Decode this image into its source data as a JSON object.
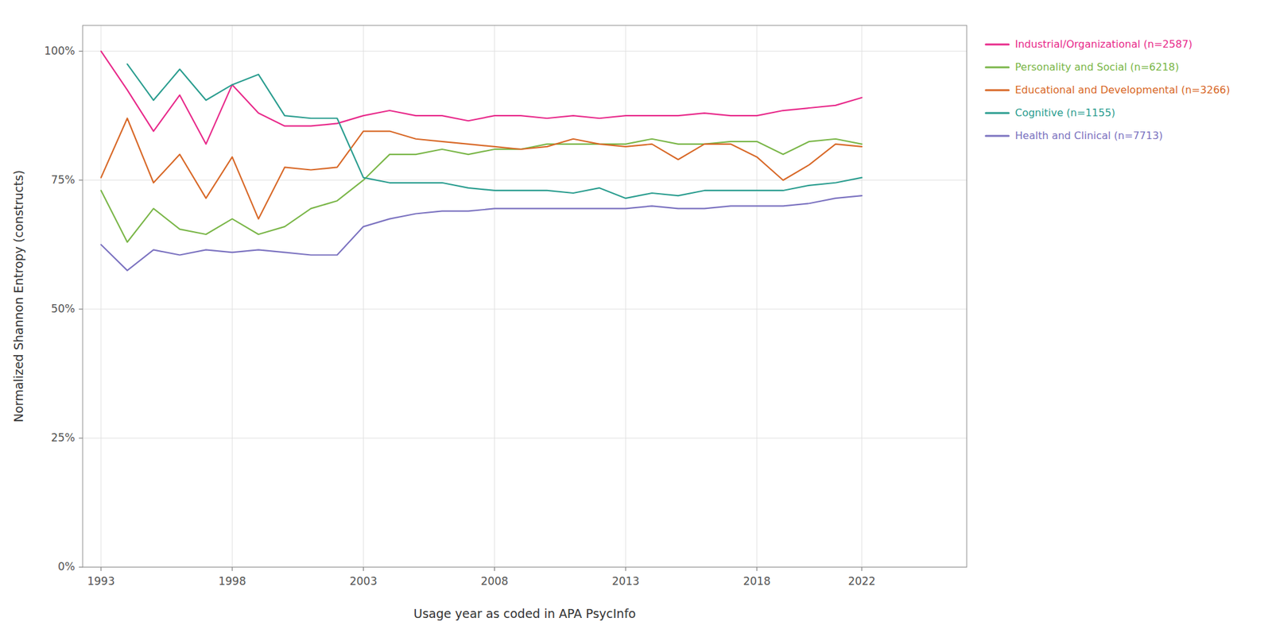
{
  "chart_data": {
    "type": "line",
    "x_label": "Usage year as coded in APA PsycInfo",
    "y_label": "Normalized Shannon Entropy (constructs)",
    "x": [
      1993,
      1994,
      1995,
      1996,
      1997,
      1998,
      1999,
      2000,
      2001,
      2002,
      2003,
      2004,
      2005,
      2006,
      2007,
      2008,
      2009,
      2010,
      2011,
      2012,
      2013,
      2014,
      2015,
      2016,
      2017,
      2018,
      2019,
      2020,
      2021,
      2022
    ],
    "series": [
      {
        "name": "Industrial/Organizational (n=2587)",
        "color": "#e8298a",
        "values": [
          1.0,
          0.925,
          0.845,
          0.915,
          0.82,
          0.935,
          0.88,
          0.855,
          0.855,
          0.86,
          0.875,
          0.885,
          0.875,
          0.875,
          0.865,
          0.875,
          0.875,
          0.87,
          0.875,
          0.87,
          0.875,
          0.875,
          0.875,
          0.88,
          0.875,
          0.875,
          0.885,
          0.89,
          0.895,
          0.91
        ]
      },
      {
        "name": "Personality and Social (n=6218)",
        "color": "#7ab648",
        "values": [
          0.73,
          0.63,
          0.695,
          0.655,
          0.645,
          0.675,
          0.645,
          0.66,
          0.695,
          0.71,
          0.75,
          0.8,
          0.8,
          0.81,
          0.8,
          0.81,
          0.81,
          0.82,
          0.82,
          0.82,
          0.82,
          0.83,
          0.82,
          0.82,
          0.825,
          0.825,
          0.8,
          0.825,
          0.83,
          0.82
        ]
      },
      {
        "name": "Educational and Developmental (n=3266)",
        "color": "#d86827",
        "values": [
          0.755,
          0.87,
          0.745,
          0.8,
          0.715,
          0.795,
          0.675,
          0.775,
          0.77,
          0.775,
          0.845,
          0.845,
          0.83,
          0.825,
          0.82,
          0.815,
          0.81,
          0.815,
          0.83,
          0.82,
          0.815,
          0.82,
          0.79,
          0.82,
          0.82,
          0.795,
          0.75,
          0.78,
          0.82,
          0.815
        ]
      },
      {
        "name": "Cognitive (n=1155)",
        "color": "#2a9d8f",
        "values": [
          null,
          0.975,
          0.905,
          0.965,
          0.905,
          0.935,
          0.955,
          0.875,
          0.87,
          0.87,
          0.755,
          0.745,
          0.745,
          0.745,
          0.735,
          0.73,
          0.73,
          0.73,
          0.725,
          0.735,
          0.715,
          0.725,
          0.72,
          0.73,
          0.73,
          0.73,
          0.73,
          0.74,
          0.745,
          0.755
        ]
      },
      {
        "name": "Health and Clinical (n=7713)",
        "color": "#7b72c0",
        "values": [
          0.625,
          0.575,
          0.615,
          0.605,
          0.615,
          0.61,
          0.615,
          0.61,
          0.605,
          0.605,
          0.66,
          0.675,
          0.685,
          0.69,
          0.69,
          0.695,
          0.695,
          0.695,
          0.695,
          0.695,
          0.695,
          0.7,
          0.695,
          0.695,
          0.7,
          0.7,
          0.7,
          0.705,
          0.715,
          0.72
        ]
      }
    ],
    "xlim": [
      1992.3,
      2026.0
    ],
    "xticks": [
      1993,
      1998,
      2003,
      2008,
      2013,
      2018,
      2022
    ],
    "ylim": [
      0.0,
      1.05
    ],
    "yticks": [
      {
        "value": 0.0,
        "label": "0%"
      },
      {
        "value": 0.25,
        "label": "25%"
      },
      {
        "value": 0.5,
        "label": "50%"
      },
      {
        "value": 0.75,
        "label": "75%"
      },
      {
        "value": 1.0,
        "label": "100%"
      }
    ],
    "grid": true,
    "legend": "right"
  }
}
